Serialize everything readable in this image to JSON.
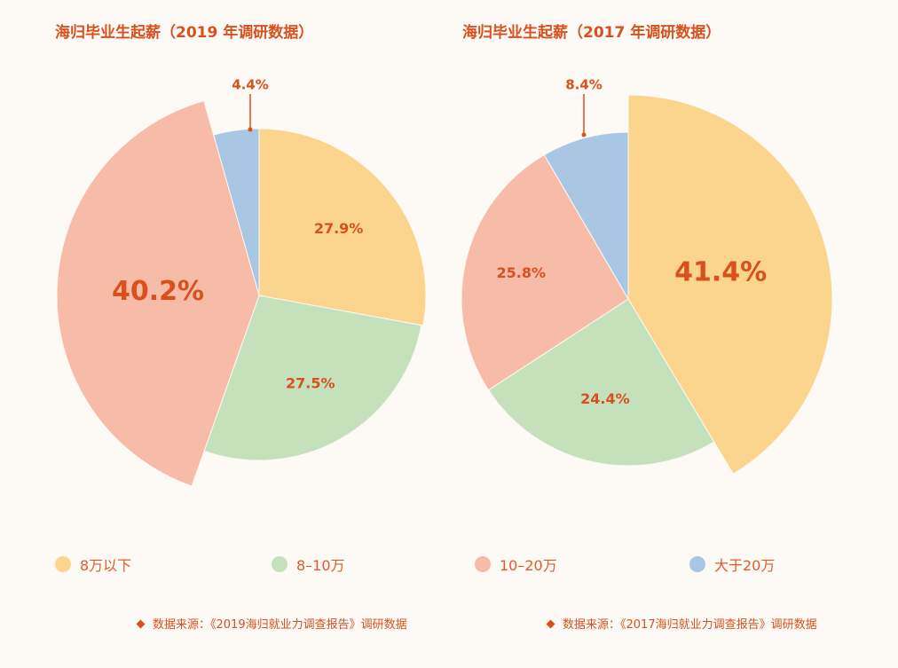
{
  "colors": {
    "8wan_below": "#fbd58e",
    "8_10wan": "#c5e1bc",
    "10_20wan": "#f6bca7",
    "above_20wan": "#a9c7e3",
    "accent": "#d9501f"
  },
  "legend": [
    {
      "label": "8万以下",
      "color": "#fbd58e"
    },
    {
      "label": "8–10万",
      "color": "#c5e1bc"
    },
    {
      "label": "10–20万",
      "color": "#f6bca7"
    },
    {
      "label": "大于20万",
      "color": "#a9c7e3"
    }
  ],
  "chart_data": [
    {
      "type": "pie",
      "title": "海归毕业生起薪（2019 年调研数据）",
      "categories": [
        "8万以下",
        "8–10万",
        "10–20万",
        "大于20万"
      ],
      "values": [
        27.9,
        27.5,
        40.2,
        4.4
      ],
      "labels": [
        "27.9%",
        "27.5%",
        "40.2%",
        "4.4%"
      ],
      "source": "数据来源：《2019海归就业力调查报告》调研数据"
    },
    {
      "type": "pie",
      "title": "海归毕业生起薪（2017 年调研数据）",
      "categories": [
        "8万以下",
        "8–10万",
        "10–20万",
        "大于20万"
      ],
      "values": [
        41.4,
        24.4,
        25.8,
        8.4
      ],
      "labels": [
        "41.4%",
        "24.4%",
        "25.8%",
        "8.4%"
      ],
      "source": "数据来源：《2017海归就业力调查报告》调研数据"
    }
  ]
}
